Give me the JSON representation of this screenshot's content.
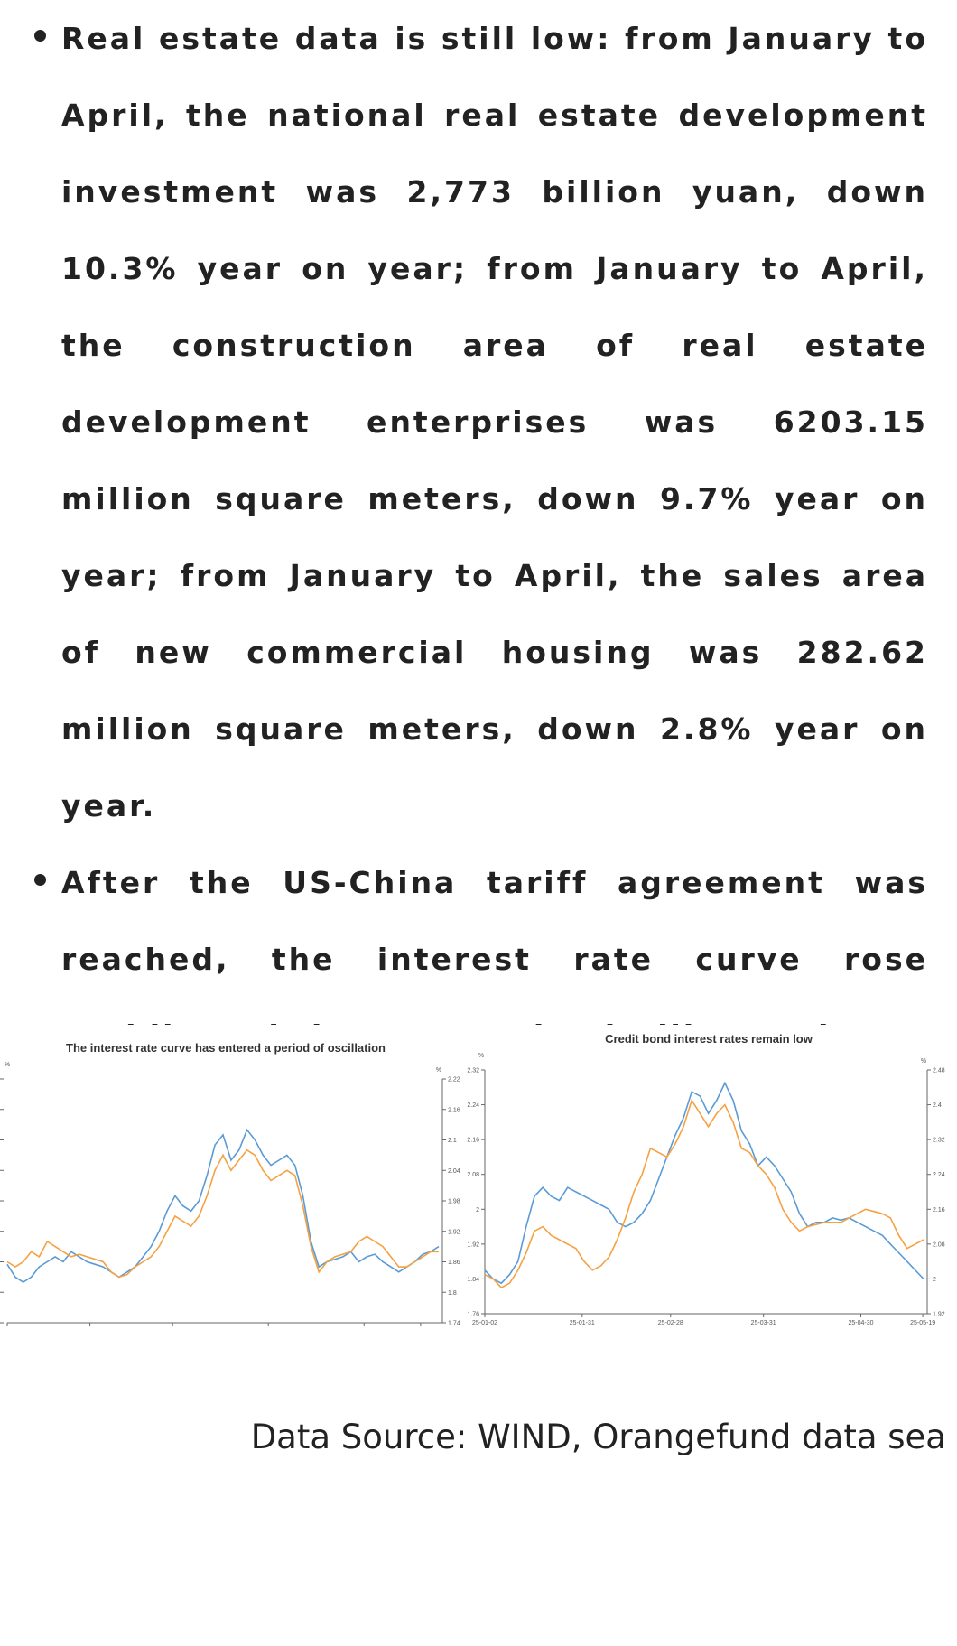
{
  "bullets": [
    "Real estate data is still low: from January to April, the national real estate development investment was 2,773 billion yuan, down 10.3% year on year; from January to April, the construction area of real estate development enterprises was 6203.15 million square meters, down 9.7% year on year; from January to April, the sales area of new commercial housing was 282.62 million square meters, down 2.8% year on year.",
    "After the US-China tariff agreement was reached, the interest rate curve rose rapidly and then entered volatility again."
  ],
  "source": "Data Source: WIND, Orangefund data sea",
  "chart_data": [
    {
      "type": "line",
      "title": "The interest rate curve has entered a period of oscillation",
      "left_unit": "%",
      "right_unit": "%",
      "x_ticks": [
        "25-01-02",
        "25-01-31",
        "25-02-28",
        "25-03-31",
        "25-04-30",
        "25-05-19"
      ],
      "right_ticks": [
        "2.22",
        "2.16",
        "2.1",
        "2.04",
        "1.98",
        "1.92",
        "1.86",
        "1.8",
        "1.74"
      ],
      "right_ylim": [
        1.74,
        2.22
      ],
      "colors": {
        "series_1": "#5b9bd5",
        "series_2": "#f5a142"
      },
      "series": [
        {
          "name": "series_1",
          "values": [
            1.855,
            1.83,
            1.82,
            1.83,
            1.85,
            1.86,
            1.87,
            1.86,
            1.88,
            1.87,
            1.86,
            1.855,
            1.85,
            1.84,
            1.83,
            1.84,
            1.85,
            1.87,
            1.89,
            1.92,
            1.96,
            1.99,
            1.97,
            1.96,
            1.98,
            2.03,
            2.09,
            2.11,
            2.06,
            2.08,
            2.12,
            2.1,
            2.07,
            2.05,
            2.06,
            2.07,
            2.05,
            1.99,
            1.9,
            1.85,
            1.86,
            1.865,
            1.87,
            1.88,
            1.86,
            1.87,
            1.875,
            1.86,
            1.85,
            1.84,
            1.85,
            1.86,
            1.875,
            1.88,
            1.89
          ]
        },
        {
          "name": "series_2",
          "values": [
            1.86,
            1.85,
            1.86,
            1.88,
            1.87,
            1.9,
            1.89,
            1.88,
            1.87,
            1.875,
            1.87,
            1.865,
            1.86,
            1.84,
            1.83,
            1.835,
            1.85,
            1.86,
            1.87,
            1.89,
            1.92,
            1.95,
            1.94,
            1.93,
            1.95,
            1.99,
            2.04,
            2.07,
            2.04,
            2.06,
            2.08,
            2.07,
            2.04,
            2.02,
            2.03,
            2.04,
            2.03,
            1.97,
            1.89,
            1.84,
            1.86,
            1.87,
            1.875,
            1.88,
            1.9,
            1.91,
            1.9,
            1.89,
            1.87,
            1.85,
            1.85,
            1.86,
            1.87,
            1.88,
            1.88
          ]
        }
      ]
    },
    {
      "type": "line",
      "title": "Credit bond interest rates remain low",
      "left_unit": "%",
      "right_unit": "%",
      "x_ticks": [
        "25-01-02",
        "25-01-31",
        "25-02-28",
        "25-03-31",
        "25-04-30",
        "25-05-19"
      ],
      "left_ticks": [
        "2.32",
        "2.24",
        "2.16",
        "2.08",
        "2",
        "1.92",
        "1.84",
        "1.76"
      ],
      "right_ticks": [
        "2.48",
        "2.4",
        "2.32",
        "2.24",
        "2.16",
        "2.08",
        "2",
        "1.92"
      ],
      "left_ylim": [
        1.76,
        2.32
      ],
      "right_ylim": [
        1.92,
        2.48
      ],
      "colors": {
        "series_1": "#5b9bd5",
        "series_2": "#f5a142"
      },
      "series": [
        {
          "name": "series_1",
          "values": [
            1.86,
            1.84,
            1.83,
            1.85,
            1.88,
            1.96,
            2.03,
            2.05,
            2.03,
            2.02,
            2.05,
            2.04,
            2.03,
            2.02,
            2.01,
            2.0,
            1.97,
            1.96,
            1.97,
            1.99,
            2.02,
            2.07,
            2.12,
            2.17,
            2.21,
            2.27,
            2.26,
            2.22,
            2.25,
            2.29,
            2.25,
            2.18,
            2.15,
            2.1,
            2.12,
            2.1,
            2.07,
            2.04,
            1.99,
            1.96,
            1.97,
            1.97,
            1.98,
            1.975,
            1.98,
            1.97,
            1.96,
            1.95,
            1.94,
            1.92,
            1.9,
            1.88,
            1.86,
            1.84
          ]
        },
        {
          "name": "series_2",
          "values": [
            1.85,
            1.84,
            1.82,
            1.83,
            1.86,
            1.9,
            1.95,
            1.96,
            1.94,
            1.93,
            1.92,
            1.91,
            1.88,
            1.86,
            1.87,
            1.89,
            1.93,
            1.98,
            2.04,
            2.08,
            2.14,
            2.13,
            2.12,
            2.15,
            2.19,
            2.25,
            2.22,
            2.19,
            2.22,
            2.24,
            2.2,
            2.14,
            2.13,
            2.1,
            2.08,
            2.05,
            2.0,
            1.97,
            1.95,
            1.96,
            1.965,
            1.97,
            1.97,
            1.97,
            1.98,
            1.99,
            2.0,
            1.995,
            1.99,
            1.98,
            1.94,
            1.91,
            1.92,
            1.93
          ]
        }
      ]
    }
  ]
}
